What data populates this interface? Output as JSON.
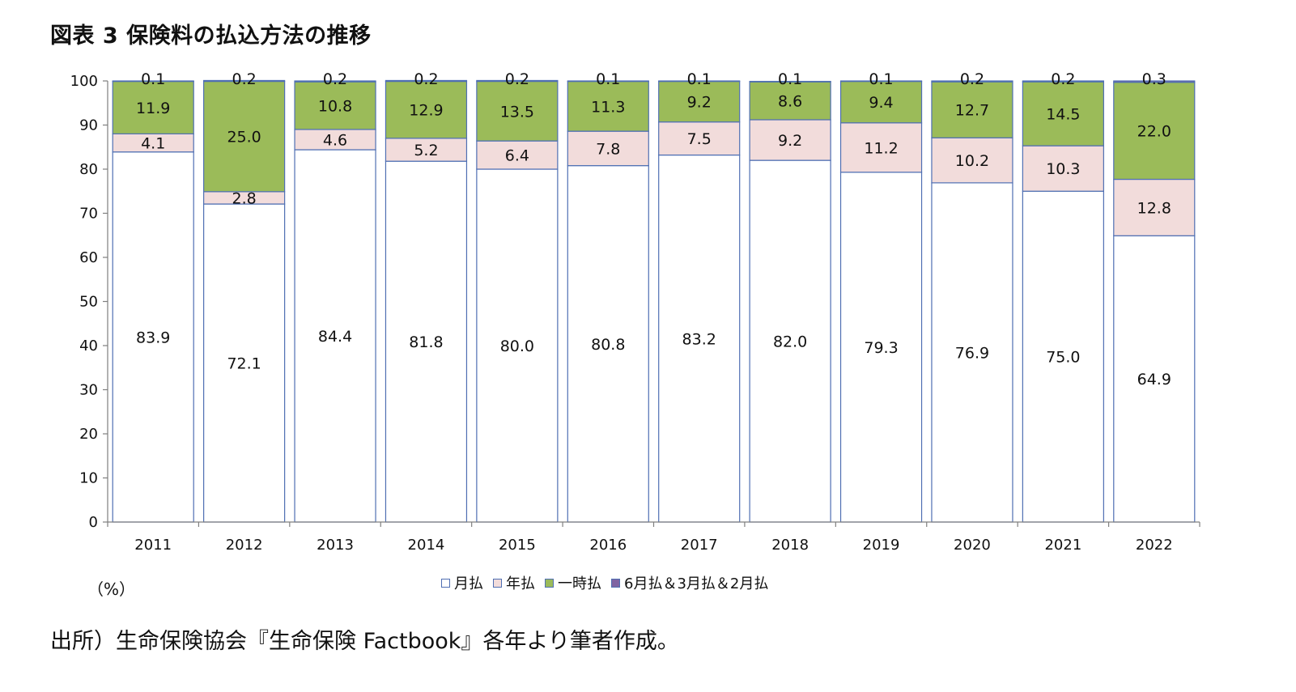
{
  "title": "図表 3 保険料の払込方法の推移",
  "unit_label": "（%）",
  "source_note": "出所）生命保険協会『生命保険 Factbook』各年より筆者作成。",
  "colors": {
    "monthly": "#ffffff",
    "annual": "#f2dcdb",
    "lump": "#9bbb59",
    "other": "#8064a2",
    "border": "#4f6fb3",
    "axis": "#7f7f7f"
  },
  "chart_data": {
    "type": "bar",
    "stacked": true,
    "categories": [
      "2011",
      "2012",
      "2013",
      "2014",
      "2015",
      "2016",
      "2017",
      "2018",
      "2019",
      "2020",
      "2021",
      "2022"
    ],
    "series": [
      {
        "name": "月払",
        "values": [
          83.9,
          72.1,
          84.4,
          81.8,
          80.0,
          80.8,
          83.2,
          82.0,
          79.3,
          76.9,
          75.0,
          64.9
        ]
      },
      {
        "name": "年払",
        "values": [
          4.1,
          2.8,
          4.6,
          5.2,
          6.4,
          7.8,
          7.5,
          9.2,
          11.2,
          10.2,
          10.3,
          12.8
        ]
      },
      {
        "name": "一時払",
        "values": [
          11.9,
          25.0,
          10.8,
          12.9,
          13.5,
          11.3,
          9.2,
          8.6,
          9.4,
          12.7,
          14.5,
          22.0
        ]
      },
      {
        "name": "6月払＆3月払＆2月払",
        "values": [
          0.1,
          0.2,
          0.2,
          0.2,
          0.2,
          0.1,
          0.1,
          0.1,
          0.1,
          0.2,
          0.2,
          0.3
        ]
      }
    ],
    "ylim": [
      0,
      100
    ],
    "yticks": [
      0,
      10,
      20,
      30,
      40,
      50,
      60,
      70,
      80,
      90,
      100
    ],
    "grid": false,
    "legend_position": "bottom"
  }
}
